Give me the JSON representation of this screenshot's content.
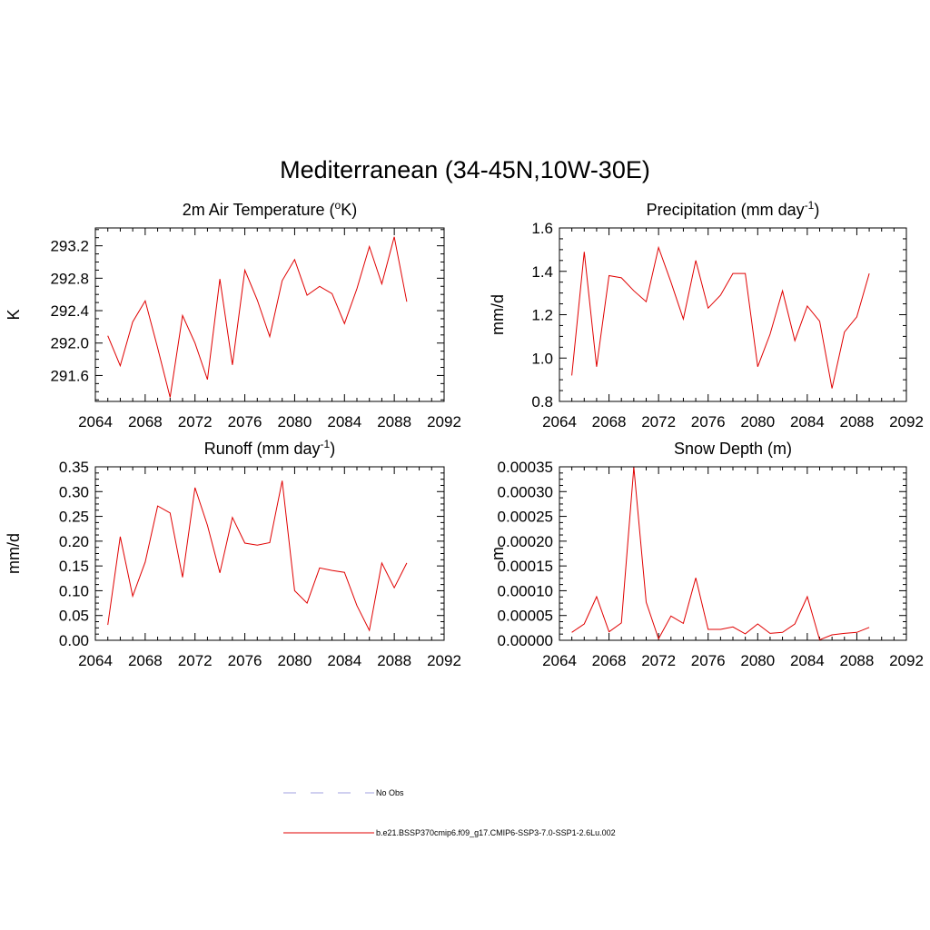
{
  "title": "Mediterranean (34-45N,10W-30E)",
  "legend": {
    "entries": [
      {
        "label": "No Obs",
        "color": "#a0a0e0",
        "style": "dashed"
      },
      {
        "label": "b.e21.BSSP370cmip6.f09_g17.CMIP6-SSP3-7.0-SSP1-2.6Lu.002",
        "color": "#e00000",
        "style": "solid"
      }
    ]
  },
  "series_color": "#e00000",
  "chart_data": [
    {
      "type": "line",
      "title": "2m Air Temperature (°K)",
      "title_parts": [
        "2m Air Temperature (",
        "o",
        "K)"
      ],
      "ylabel": "K",
      "xlim": [
        2064,
        2092
      ],
      "xticks": [
        "2064",
        "2068",
        "2072",
        "2076",
        "2080",
        "2084",
        "2088",
        "2092"
      ],
      "ylim": [
        291.28,
        293.42
      ],
      "yticks": [
        "291.6",
        "292.0",
        "292.4",
        "292.8",
        "293.2"
      ],
      "ytick_values": [
        291.6,
        292.0,
        292.4,
        292.8,
        293.2
      ],
      "x": [
        2065,
        2066,
        2067,
        2068,
        2069,
        2070,
        2071,
        2072,
        2073,
        2074,
        2075,
        2076,
        2077,
        2078,
        2079,
        2080,
        2081,
        2082,
        2083,
        2084,
        2085,
        2086,
        2087,
        2088,
        2089
      ],
      "series": [
        {
          "values": [
            292.09,
            291.72,
            292.26,
            292.52,
            291.94,
            291.33,
            292.34,
            292.0,
            291.55,
            292.79,
            291.73,
            292.9,
            292.53,
            292.08,
            292.77,
            293.03,
            292.59,
            292.7,
            292.61,
            292.24,
            292.67,
            293.19,
            292.73,
            293.31,
            292.51
          ]
        }
      ]
    },
    {
      "type": "line",
      "title": "Precipitation (mm day-1)",
      "title_parts": [
        "Precipitation (mm day",
        "-1",
        ")"
      ],
      "ylabel": "mm/d",
      "xlim": [
        2064,
        2092
      ],
      "xticks": [
        "2064",
        "2068",
        "2072",
        "2076",
        "2080",
        "2084",
        "2088",
        "2092"
      ],
      "ylim": [
        0.8,
        1.6
      ],
      "yticks": [
        "0.8",
        "1.0",
        "1.2",
        "1.4",
        "1.6"
      ],
      "ytick_values": [
        0.8,
        1.0,
        1.2,
        1.4,
        1.6
      ],
      "x": [
        2065,
        2066,
        2067,
        2068,
        2069,
        2070,
        2071,
        2072,
        2073,
        2074,
        2075,
        2076,
        2077,
        2078,
        2079,
        2080,
        2081,
        2082,
        2083,
        2084,
        2085,
        2086,
        2087,
        2088,
        2089
      ],
      "series": [
        {
          "values": [
            0.92,
            1.49,
            0.96,
            1.38,
            1.37,
            1.31,
            1.26,
            1.51,
            1.35,
            1.18,
            1.45,
            1.23,
            1.29,
            1.39,
            1.39,
            0.96,
            1.11,
            1.31,
            1.08,
            1.24,
            1.17,
            0.86,
            1.12,
            1.19,
            1.39
          ]
        }
      ]
    },
    {
      "type": "line",
      "title": "Runoff (mm day-1)",
      "title_parts": [
        "Runoff (mm day",
        "-1",
        ")"
      ],
      "ylabel": "mm/d",
      "xlim": [
        2064,
        2092
      ],
      "xticks": [
        "2064",
        "2068",
        "2072",
        "2076",
        "2080",
        "2084",
        "2088",
        "2092"
      ],
      "ylim": [
        0.0,
        0.35
      ],
      "yticks": [
        "0.00",
        "0.05",
        "0.10",
        "0.15",
        "0.20",
        "0.25",
        "0.30",
        "0.35"
      ],
      "ytick_values": [
        0.0,
        0.05,
        0.1,
        0.15,
        0.2,
        0.25,
        0.3,
        0.35
      ],
      "x": [
        2065,
        2066,
        2067,
        2068,
        2069,
        2070,
        2071,
        2072,
        2073,
        2074,
        2075,
        2076,
        2077,
        2078,
        2079,
        2080,
        2081,
        2082,
        2083,
        2084,
        2085,
        2086,
        2087,
        2088,
        2089
      ],
      "series": [
        {
          "values": [
            0.031,
            0.209,
            0.089,
            0.158,
            0.271,
            0.257,
            0.127,
            0.308,
            0.232,
            0.136,
            0.248,
            0.196,
            0.192,
            0.197,
            0.322,
            0.1,
            0.075,
            0.146,
            0.141,
            0.137,
            0.07,
            0.02,
            0.156,
            0.106,
            0.156
          ]
        }
      ]
    },
    {
      "type": "line",
      "title": "Snow Depth (m)",
      "title_parts": [
        "Snow Depth (m)",
        "",
        ""
      ],
      "ylabel": "m",
      "xlim": [
        2064,
        2092
      ],
      "xticks": [
        "2064",
        "2068",
        "2072",
        "2076",
        "2080",
        "2084",
        "2088",
        "2092"
      ],
      "ylim": [
        0.0,
        0.00035
      ],
      "yticks": [
        "0.00000",
        "0.00005",
        "0.00010",
        "0.00015",
        "0.00020",
        "0.00025",
        "0.00030",
        "0.00035"
      ],
      "ytick_values": [
        0.0,
        5e-05,
        0.0001,
        0.00015,
        0.0002,
        0.00025,
        0.0003,
        0.00035
      ],
      "x": [
        2065,
        2066,
        2067,
        2068,
        2069,
        2070,
        2071,
        2072,
        2073,
        2074,
        2075,
        2076,
        2077,
        2078,
        2079,
        2080,
        2081,
        2082,
        2083,
        2084,
        2085,
        2086,
        2087,
        2088,
        2089
      ],
      "series": [
        {
          "values": [
            1.6e-05,
            3.3e-05,
            8.8e-05,
            1.7e-05,
            3.5e-05,
            0.000349,
            7.7e-05,
            3e-06,
            4.9e-05,
            3.4e-05,
            0.000126,
            2.2e-05,
            2.2e-05,
            2.7e-05,
            1.3e-05,
            3.3e-05,
            1.4e-05,
            1.6e-05,
            3.3e-05,
            8.8e-05,
            1e-06,
            1.1e-05,
            1.4e-05,
            1.6e-05,
            2.6e-05
          ]
        }
      ]
    }
  ]
}
